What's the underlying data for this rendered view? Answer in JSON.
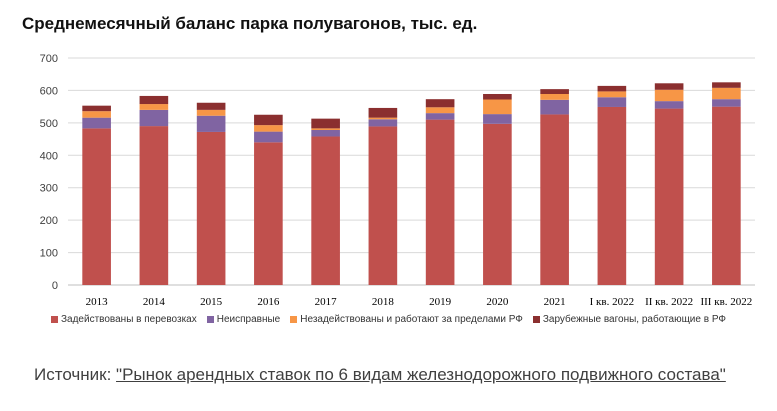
{
  "chart_data": {
    "type": "bar",
    "stacked": true,
    "title": "Среднемесячный баланс парка полувагонов, тыс. ед.",
    "categories": [
      "2013",
      "2014",
      "2015",
      "2016",
      "2017",
      "2018",
      "2019",
      "2020",
      "2021",
      "I кв. 2022",
      "II кв. 2022",
      "III кв. 2022"
    ],
    "series": [
      {
        "name": "Задействованы в перевозках",
        "color": "#c0504d",
        "values": [
          483,
          490,
          472,
          440,
          458,
          489,
          510,
          497,
          526,
          549,
          544,
          550
        ]
      },
      {
        "name": "Неисправные",
        "color": "#8064a2",
        "values": [
          33,
          50,
          50,
          33,
          20,
          22,
          20,
          30,
          45,
          30,
          23,
          23
        ]
      },
      {
        "name": "Незадействованы и работают за пределами РФ",
        "color": "#f79646",
        "values": [
          20,
          18,
          18,
          20,
          5,
          5,
          18,
          45,
          18,
          18,
          35,
          35
        ]
      },
      {
        "name": "Зарубежные вагоны, работающие в РФ",
        "color": "#8b2f2f",
        "values": [
          17,
          25,
          22,
          32,
          30,
          30,
          25,
          17,
          15,
          17,
          20,
          17
        ]
      }
    ],
    "ylim": [
      0,
      700
    ],
    "yticks": [
      0,
      100,
      200,
      300,
      400,
      500,
      600,
      700
    ],
    "grid": true,
    "legend_position": "bottom"
  },
  "source": {
    "prefix": "Источник: ",
    "link_text": "\"Рынок арендных ставок по 6 видам железнодорожного подвижного состава\""
  }
}
